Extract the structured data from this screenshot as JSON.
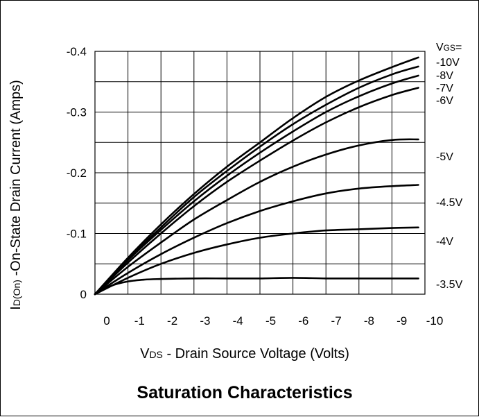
{
  "chart_data": {
    "type": "line",
    "title": "Saturation Characteristics",
    "xlabel": {
      "prefix": "V",
      "subscript": "DS",
      "text": " - Drain Source Voltage (Volts)"
    },
    "ylabel": {
      "prefix": "I",
      "subscript": "D(On)",
      "text": " -On-State Drain Current (Amps)"
    },
    "legend_title": {
      "prefix": "V",
      "subscript": "GS",
      "text": "="
    },
    "xlim": [
      0,
      -10
    ],
    "ylim": [
      0,
      -0.4
    ],
    "x_ticks": [
      "0",
      "-1",
      "-2",
      "-3",
      "-4",
      "-5",
      "-6",
      "-7",
      "-8",
      "-9",
      "-10"
    ],
    "y_ticks": [
      "0",
      "-0.1",
      "-0.2",
      "-0.3",
      "-0.4"
    ],
    "grid": true,
    "series": [
      {
        "name": "-10V",
        "x": [
          0,
          -1,
          -2,
          -3,
          -4,
          -5,
          -6,
          -7,
          -8,
          -9,
          -9.8
        ],
        "y": [
          0,
          -0.06,
          -0.115,
          -0.165,
          -0.21,
          -0.25,
          -0.29,
          -0.325,
          -0.352,
          -0.374,
          -0.39
        ]
      },
      {
        "name": "-8V",
        "x": [
          0,
          -1,
          -2,
          -3,
          -4,
          -5,
          -6,
          -7,
          -8,
          -9,
          -9.8
        ],
        "y": [
          0,
          -0.058,
          -0.11,
          -0.16,
          -0.203,
          -0.243,
          -0.28,
          -0.312,
          -0.34,
          -0.362,
          -0.375
        ]
      },
      {
        "name": "-7V",
        "x": [
          0,
          -1,
          -2,
          -3,
          -4,
          -5,
          -6,
          -7,
          -8,
          -9,
          -9.8
        ],
        "y": [
          0,
          -0.056,
          -0.106,
          -0.153,
          -0.195,
          -0.233,
          -0.268,
          -0.3,
          -0.326,
          -0.347,
          -0.36
        ]
      },
      {
        "name": "-6V",
        "x": [
          0,
          -1,
          -2,
          -3,
          -4,
          -5,
          -6,
          -7,
          -8,
          -9,
          -9.8
        ],
        "y": [
          0,
          -0.052,
          -0.1,
          -0.145,
          -0.185,
          -0.22,
          -0.253,
          -0.283,
          -0.308,
          -0.328,
          -0.34
        ]
      },
      {
        "name": "-5V",
        "x": [
          0,
          -1,
          -2,
          -3,
          -4,
          -5,
          -6,
          -7,
          -8,
          -9,
          -9.8
        ],
        "y": [
          0,
          -0.045,
          -0.085,
          -0.123,
          -0.155,
          -0.185,
          -0.21,
          -0.23,
          -0.245,
          -0.254,
          -0.255
        ]
      },
      {
        "name": "-4.5V",
        "x": [
          0,
          -1,
          -2,
          -3,
          -4,
          -5,
          -6,
          -7,
          -8,
          -9,
          -9.8
        ],
        "y": [
          0,
          -0.035,
          -0.066,
          -0.093,
          -0.117,
          -0.137,
          -0.153,
          -0.166,
          -0.174,
          -0.178,
          -0.18
        ]
      },
      {
        "name": "-4V",
        "x": [
          0,
          -1,
          -2,
          -3,
          -4,
          -5,
          -6,
          -7,
          -8,
          -9,
          -9.8
        ],
        "y": [
          0,
          -0.027,
          -0.05,
          -0.068,
          -0.082,
          -0.093,
          -0.1,
          -0.105,
          -0.107,
          -0.109,
          -0.11
        ]
      },
      {
        "name": "-3.5V",
        "x": [
          0,
          -0.5,
          -1,
          -1.5,
          -2,
          -3,
          -4,
          -5,
          -6,
          -7,
          -8,
          -9,
          -9.8
        ],
        "y": [
          0,
          -0.014,
          -0.021,
          -0.024,
          -0.025,
          -0.026,
          -0.026,
          -0.026,
          -0.027,
          -0.026,
          -0.026,
          -0.026,
          -0.026
        ]
      }
    ]
  }
}
